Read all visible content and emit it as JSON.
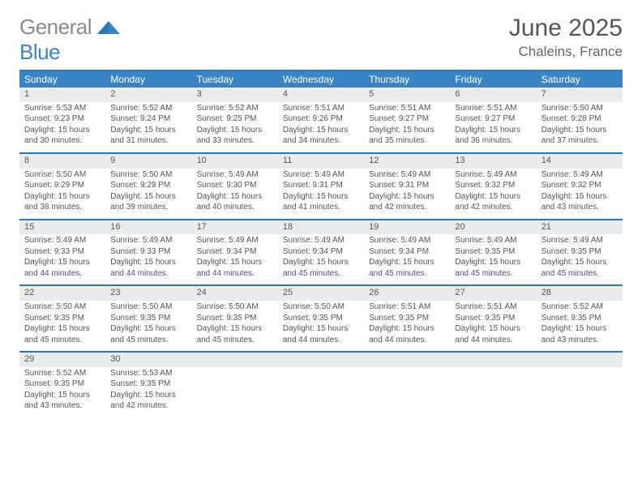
{
  "logo": {
    "word1": "General",
    "word2": "Blue"
  },
  "title": "June 2025",
  "location": "Chaleins, France",
  "colors": {
    "header_bg": "#3b84c4",
    "divider": "#2e77b5",
    "daynum_bg": "#ebebeb",
    "text": "#555555",
    "page_bg": "#ffffff"
  },
  "weekdays": [
    "Sunday",
    "Monday",
    "Tuesday",
    "Wednesday",
    "Thursday",
    "Friday",
    "Saturday"
  ],
  "weeks": [
    [
      {
        "n": "1",
        "sr": "Sunrise: 5:53 AM",
        "ss": "Sunset: 9:23 PM",
        "d1": "Daylight: 15 hours",
        "d2": "and 30 minutes."
      },
      {
        "n": "2",
        "sr": "Sunrise: 5:52 AM",
        "ss": "Sunset: 9:24 PM",
        "d1": "Daylight: 15 hours",
        "d2": "and 31 minutes."
      },
      {
        "n": "3",
        "sr": "Sunrise: 5:52 AM",
        "ss": "Sunset: 9:25 PM",
        "d1": "Daylight: 15 hours",
        "d2": "and 33 minutes."
      },
      {
        "n": "4",
        "sr": "Sunrise: 5:51 AM",
        "ss": "Sunset: 9:26 PM",
        "d1": "Daylight: 15 hours",
        "d2": "and 34 minutes."
      },
      {
        "n": "5",
        "sr": "Sunrise: 5:51 AM",
        "ss": "Sunset: 9:27 PM",
        "d1": "Daylight: 15 hours",
        "d2": "and 35 minutes."
      },
      {
        "n": "6",
        "sr": "Sunrise: 5:51 AM",
        "ss": "Sunset: 9:27 PM",
        "d1": "Daylight: 15 hours",
        "d2": "and 36 minutes."
      },
      {
        "n": "7",
        "sr": "Sunrise: 5:50 AM",
        "ss": "Sunset: 9:28 PM",
        "d1": "Daylight: 15 hours",
        "d2": "and 37 minutes."
      }
    ],
    [
      {
        "n": "8",
        "sr": "Sunrise: 5:50 AM",
        "ss": "Sunset: 9:29 PM",
        "d1": "Daylight: 15 hours",
        "d2": "and 38 minutes."
      },
      {
        "n": "9",
        "sr": "Sunrise: 5:50 AM",
        "ss": "Sunset: 9:29 PM",
        "d1": "Daylight: 15 hours",
        "d2": "and 39 minutes."
      },
      {
        "n": "10",
        "sr": "Sunrise: 5:49 AM",
        "ss": "Sunset: 9:30 PM",
        "d1": "Daylight: 15 hours",
        "d2": "and 40 minutes."
      },
      {
        "n": "11",
        "sr": "Sunrise: 5:49 AM",
        "ss": "Sunset: 9:31 PM",
        "d1": "Daylight: 15 hours",
        "d2": "and 41 minutes."
      },
      {
        "n": "12",
        "sr": "Sunrise: 5:49 AM",
        "ss": "Sunset: 9:31 PM",
        "d1": "Daylight: 15 hours",
        "d2": "and 42 minutes."
      },
      {
        "n": "13",
        "sr": "Sunrise: 5:49 AM",
        "ss": "Sunset: 9:32 PM",
        "d1": "Daylight: 15 hours",
        "d2": "and 42 minutes."
      },
      {
        "n": "14",
        "sr": "Sunrise: 5:49 AM",
        "ss": "Sunset: 9:32 PM",
        "d1": "Daylight: 15 hours",
        "d2": "and 43 minutes."
      }
    ],
    [
      {
        "n": "15",
        "sr": "Sunrise: 5:49 AM",
        "ss": "Sunset: 9:33 PM",
        "d1": "Daylight: 15 hours",
        "d2": "and 44 minutes."
      },
      {
        "n": "16",
        "sr": "Sunrise: 5:49 AM",
        "ss": "Sunset: 9:33 PM",
        "d1": "Daylight: 15 hours",
        "d2": "and 44 minutes."
      },
      {
        "n": "17",
        "sr": "Sunrise: 5:49 AM",
        "ss": "Sunset: 9:34 PM",
        "d1": "Daylight: 15 hours",
        "d2": "and 44 minutes."
      },
      {
        "n": "18",
        "sr": "Sunrise: 5:49 AM",
        "ss": "Sunset: 9:34 PM",
        "d1": "Daylight: 15 hours",
        "d2": "and 45 minutes."
      },
      {
        "n": "19",
        "sr": "Sunrise: 5:49 AM",
        "ss": "Sunset: 9:34 PM",
        "d1": "Daylight: 15 hours",
        "d2": "and 45 minutes."
      },
      {
        "n": "20",
        "sr": "Sunrise: 5:49 AM",
        "ss": "Sunset: 9:35 PM",
        "d1": "Daylight: 15 hours",
        "d2": "and 45 minutes."
      },
      {
        "n": "21",
        "sr": "Sunrise: 5:49 AM",
        "ss": "Sunset: 9:35 PM",
        "d1": "Daylight: 15 hours",
        "d2": "and 45 minutes."
      }
    ],
    [
      {
        "n": "22",
        "sr": "Sunrise: 5:50 AM",
        "ss": "Sunset: 9:35 PM",
        "d1": "Daylight: 15 hours",
        "d2": "and 45 minutes."
      },
      {
        "n": "23",
        "sr": "Sunrise: 5:50 AM",
        "ss": "Sunset: 9:35 PM",
        "d1": "Daylight: 15 hours",
        "d2": "and 45 minutes."
      },
      {
        "n": "24",
        "sr": "Sunrise: 5:50 AM",
        "ss": "Sunset: 9:35 PM",
        "d1": "Daylight: 15 hours",
        "d2": "and 45 minutes."
      },
      {
        "n": "25",
        "sr": "Sunrise: 5:50 AM",
        "ss": "Sunset: 9:35 PM",
        "d1": "Daylight: 15 hours",
        "d2": "and 44 minutes."
      },
      {
        "n": "26",
        "sr": "Sunrise: 5:51 AM",
        "ss": "Sunset: 9:35 PM",
        "d1": "Daylight: 15 hours",
        "d2": "and 44 minutes."
      },
      {
        "n": "27",
        "sr": "Sunrise: 5:51 AM",
        "ss": "Sunset: 9:35 PM",
        "d1": "Daylight: 15 hours",
        "d2": "and 44 minutes."
      },
      {
        "n": "28",
        "sr": "Sunrise: 5:52 AM",
        "ss": "Sunset: 9:35 PM",
        "d1": "Daylight: 15 hours",
        "d2": "and 43 minutes."
      }
    ],
    [
      {
        "n": "29",
        "sr": "Sunrise: 5:52 AM",
        "ss": "Sunset: 9:35 PM",
        "d1": "Daylight: 15 hours",
        "d2": "and 43 minutes."
      },
      {
        "n": "30",
        "sr": "Sunrise: 5:53 AM",
        "ss": "Sunset: 9:35 PM",
        "d1": "Daylight: 15 hours",
        "d2": "and 42 minutes."
      },
      {
        "empty": true
      },
      {
        "empty": true
      },
      {
        "empty": true
      },
      {
        "empty": true
      },
      {
        "empty": true
      }
    ]
  ]
}
